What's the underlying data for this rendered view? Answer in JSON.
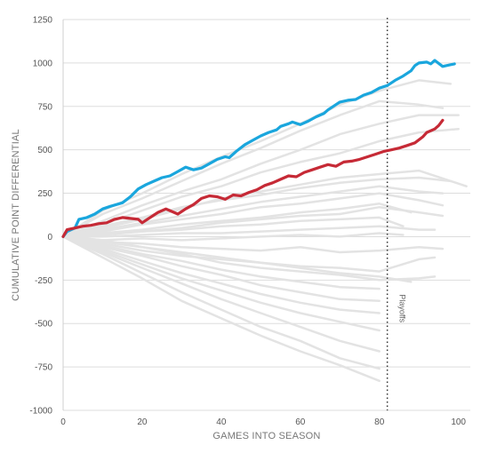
{
  "chart_data": {
    "type": "line",
    "xlabel": "GAMES INTO SEASON",
    "ylabel": "CUMULATIVE POINT DIFFERENTIAL",
    "xlim": [
      0,
      103
    ],
    "ylim": [
      -1000,
      1250
    ],
    "x_ticks": [
      0,
      20,
      40,
      60,
      80,
      100
    ],
    "y_ticks": [
      -1000,
      -750,
      -500,
      -250,
      0,
      250,
      500,
      750,
      1000,
      1250
    ],
    "grid": "horizontal",
    "annotations": [
      {
        "type": "vline",
        "x": 82,
        "label": "Playoffs"
      }
    ],
    "colors": {
      "blue": "#1aa6dd",
      "red": "#c62a36",
      "gray": "#e3e3e3",
      "grid": "#dddddd"
    },
    "series": [
      {
        "color": "blue",
        "games": 99,
        "final": 995,
        "points": [
          [
            0,
            0
          ],
          [
            1,
            30
          ],
          [
            3,
            50
          ],
          [
            4,
            100
          ],
          [
            6,
            110
          ],
          [
            8,
            130
          ],
          [
            10,
            160
          ],
          [
            12,
            175
          ],
          [
            15,
            195
          ],
          [
            17,
            230
          ],
          [
            19,
            275
          ],
          [
            21,
            300
          ],
          [
            23,
            320
          ],
          [
            25,
            340
          ],
          [
            27,
            350
          ],
          [
            29,
            375
          ],
          [
            31,
            400
          ],
          [
            33,
            385
          ],
          [
            35,
            395
          ],
          [
            37,
            420
          ],
          [
            39,
            445
          ],
          [
            41,
            460
          ],
          [
            42,
            455
          ],
          [
            44,
            495
          ],
          [
            46,
            530
          ],
          [
            48,
            555
          ],
          [
            50,
            580
          ],
          [
            52,
            600
          ],
          [
            54,
            615
          ],
          [
            55,
            635
          ],
          [
            57,
            650
          ],
          [
            58,
            660
          ],
          [
            60,
            645
          ],
          [
            62,
            665
          ],
          [
            64,
            690
          ],
          [
            66,
            710
          ],
          [
            67,
            730
          ],
          [
            69,
            760
          ],
          [
            70,
            775
          ],
          [
            72,
            785
          ],
          [
            74,
            790
          ],
          [
            76,
            815
          ],
          [
            78,
            830
          ],
          [
            80,
            855
          ],
          [
            82,
            870
          ],
          [
            84,
            900
          ],
          [
            86,
            925
          ],
          [
            88,
            955
          ],
          [
            89,
            985
          ],
          [
            90,
            1000
          ],
          [
            92,
            1005
          ],
          [
            93,
            995
          ],
          [
            94,
            1015
          ],
          [
            96,
            980
          ],
          [
            97,
            985
          ],
          [
            99,
            995
          ]
        ]
      },
      {
        "color": "red",
        "games": 96,
        "final": 670,
        "points": [
          [
            0,
            0
          ],
          [
            1,
            40
          ],
          [
            3,
            50
          ],
          [
            5,
            60
          ],
          [
            7,
            65
          ],
          [
            9,
            75
          ],
          [
            11,
            80
          ],
          [
            13,
            100
          ],
          [
            15,
            110
          ],
          [
            17,
            105
          ],
          [
            19,
            100
          ],
          [
            20,
            80
          ],
          [
            22,
            110
          ],
          [
            24,
            140
          ],
          [
            26,
            160
          ],
          [
            27,
            150
          ],
          [
            29,
            130
          ],
          [
            31,
            160
          ],
          [
            33,
            185
          ],
          [
            35,
            220
          ],
          [
            37,
            235
          ],
          [
            39,
            230
          ],
          [
            41,
            215
          ],
          [
            43,
            240
          ],
          [
            45,
            235
          ],
          [
            47,
            255
          ],
          [
            49,
            270
          ],
          [
            51,
            295
          ],
          [
            53,
            310
          ],
          [
            55,
            330
          ],
          [
            57,
            350
          ],
          [
            59,
            345
          ],
          [
            61,
            370
          ],
          [
            63,
            385
          ],
          [
            65,
            400
          ],
          [
            67,
            415
          ],
          [
            69,
            405
          ],
          [
            71,
            430
          ],
          [
            73,
            435
          ],
          [
            75,
            445
          ],
          [
            77,
            460
          ],
          [
            79,
            475
          ],
          [
            81,
            490
          ],
          [
            83,
            500
          ],
          [
            85,
            510
          ],
          [
            87,
            525
          ],
          [
            89,
            540
          ],
          [
            91,
            575
          ],
          [
            92,
            600
          ],
          [
            94,
            620
          ],
          [
            95,
            640
          ],
          [
            96,
            670
          ]
        ]
      }
    ],
    "background_series": [
      [
        [
          0,
          0
        ],
        [
          10,
          150
        ],
        [
          20,
          250
        ],
        [
          30,
          360
        ],
        [
          40,
          460
        ],
        [
          50,
          550
        ],
        [
          60,
          650
        ],
        [
          70,
          760
        ],
        [
          80,
          840
        ],
        [
          90,
          900
        ],
        [
          98,
          880
        ]
      ],
      [
        [
          0,
          0
        ],
        [
          10,
          130
        ],
        [
          20,
          220
        ],
        [
          30,
          320
        ],
        [
          40,
          420
        ],
        [
          50,
          510
        ],
        [
          60,
          610
        ],
        [
          70,
          700
        ],
        [
          80,
          780
        ],
        [
          90,
          760
        ],
        [
          96,
          740
        ]
      ],
      [
        [
          0,
          0
        ],
        [
          10,
          90
        ],
        [
          20,
          180
        ],
        [
          30,
          260
        ],
        [
          40,
          330
        ],
        [
          50,
          420
        ],
        [
          60,
          500
        ],
        [
          70,
          590
        ],
        [
          80,
          650
        ],
        [
          90,
          700
        ],
        [
          100,
          700
        ]
      ],
      [
        [
          0,
          0
        ],
        [
          10,
          70
        ],
        [
          20,
          150
        ],
        [
          30,
          230
        ],
        [
          40,
          290
        ],
        [
          50,
          370
        ],
        [
          60,
          430
        ],
        [
          70,
          480
        ],
        [
          80,
          550
        ],
        [
          90,
          600
        ],
        [
          100,
          620
        ]
      ],
      [
        [
          0,
          0
        ],
        [
          10,
          50
        ],
        [
          20,
          100
        ],
        [
          30,
          160
        ],
        [
          40,
          220
        ],
        [
          50,
          260
        ],
        [
          60,
          300
        ],
        [
          70,
          340
        ],
        [
          80,
          360
        ],
        [
          90,
          380
        ],
        [
          102,
          290
        ]
      ],
      [
        [
          0,
          0
        ],
        [
          10,
          60
        ],
        [
          20,
          110
        ],
        [
          30,
          170
        ],
        [
          40,
          210
        ],
        [
          50,
          240
        ],
        [
          60,
          280
        ],
        [
          70,
          310
        ],
        [
          80,
          330
        ],
        [
          90,
          340
        ],
        [
          98,
          320
        ]
      ],
      [
        [
          0,
          0
        ],
        [
          10,
          40
        ],
        [
          20,
          80
        ],
        [
          30,
          120
        ],
        [
          40,
          160
        ],
        [
          50,
          200
        ],
        [
          60,
          230
        ],
        [
          70,
          260
        ],
        [
          80,
          290
        ],
        [
          90,
          260
        ],
        [
          96,
          250
        ]
      ],
      [
        [
          0,
          0
        ],
        [
          10,
          30
        ],
        [
          20,
          70
        ],
        [
          30,
          100
        ],
        [
          40,
          130
        ],
        [
          50,
          170
        ],
        [
          60,
          190
        ],
        [
          70,
          220
        ],
        [
          80,
          250
        ],
        [
          90,
          210
        ],
        [
          96,
          180
        ]
      ],
      [
        [
          0,
          0
        ],
        [
          10,
          20
        ],
        [
          20,
          40
        ],
        [
          30,
          70
        ],
        [
          40,
          90
        ],
        [
          50,
          110
        ],
        [
          60,
          140
        ],
        [
          70,
          160
        ],
        [
          80,
          190
        ],
        [
          88,
          140
        ]
      ],
      [
        [
          0,
          0
        ],
        [
          10,
          10
        ],
        [
          20,
          30
        ],
        [
          30,
          40
        ],
        [
          40,
          60
        ],
        [
          50,
          70
        ],
        [
          60,
          90
        ],
        [
          70,
          100
        ],
        [
          80,
          110
        ],
        [
          86,
          60
        ]
      ],
      [
        [
          0,
          0
        ],
        [
          10,
          0
        ],
        [
          20,
          10
        ],
        [
          30,
          20
        ],
        [
          40,
          20
        ],
        [
          50,
          30
        ],
        [
          60,
          40
        ],
        [
          70,
          50
        ],
        [
          80,
          60
        ],
        [
          90,
          40
        ],
        [
          94,
          40
        ]
      ],
      [
        [
          0,
          0
        ],
        [
          10,
          -20
        ],
        [
          20,
          -10
        ],
        [
          30,
          -20
        ],
        [
          40,
          -10
        ],
        [
          50,
          0
        ],
        [
          60,
          10
        ],
        [
          70,
          0
        ],
        [
          80,
          20
        ],
        [
          86,
          10
        ]
      ],
      [
        [
          0,
          0
        ],
        [
          10,
          -30
        ],
        [
          20,
          -40
        ],
        [
          30,
          -60
        ],
        [
          40,
          -70
        ],
        [
          50,
          -80
        ],
        [
          60,
          -60
        ],
        [
          70,
          -90
        ],
        [
          80,
          -80
        ],
        [
          90,
          -60
        ],
        [
          96,
          -70
        ]
      ],
      [
        [
          0,
          0
        ],
        [
          10,
          -40
        ],
        [
          20,
          -80
        ],
        [
          30,
          -110
        ],
        [
          40,
          -130
        ],
        [
          50,
          -150
        ],
        [
          60,
          -170
        ],
        [
          70,
          -180
        ],
        [
          80,
          -200
        ],
        [
          90,
          -130
        ],
        [
          94,
          -120
        ]
      ],
      [
        [
          0,
          0
        ],
        [
          10,
          -30
        ],
        [
          20,
          -60
        ],
        [
          30,
          -90
        ],
        [
          40,
          -120
        ],
        [
          50,
          -150
        ],
        [
          60,
          -180
        ],
        [
          70,
          -210
        ],
        [
          80,
          -230
        ],
        [
          88,
          -260
        ]
      ],
      [
        [
          0,
          0
        ],
        [
          10,
          -50
        ],
        [
          20,
          -100
        ],
        [
          30,
          -140
        ],
        [
          40,
          -190
        ],
        [
          50,
          -230
        ],
        [
          60,
          -260
        ],
        [
          70,
          -290
        ],
        [
          80,
          -300
        ]
      ],
      [
        [
          0,
          0
        ],
        [
          10,
          -60
        ],
        [
          20,
          -110
        ],
        [
          30,
          -170
        ],
        [
          40,
          -220
        ],
        [
          50,
          -280
        ],
        [
          60,
          -320
        ],
        [
          70,
          -360
        ],
        [
          80,
          -370
        ]
      ],
      [
        [
          0,
          0
        ],
        [
          10,
          -70
        ],
        [
          20,
          -140
        ],
        [
          30,
          -210
        ],
        [
          40,
          -270
        ],
        [
          50,
          -330
        ],
        [
          60,
          -380
        ],
        [
          70,
          -420
        ],
        [
          80,
          -440
        ]
      ],
      [
        [
          0,
          0
        ],
        [
          10,
          -80
        ],
        [
          20,
          -160
        ],
        [
          30,
          -240
        ],
        [
          40,
          -310
        ],
        [
          50,
          -380
        ],
        [
          60,
          -440
        ],
        [
          70,
          -490
        ],
        [
          80,
          -540
        ]
      ],
      [
        [
          0,
          0
        ],
        [
          10,
          -90
        ],
        [
          20,
          -180
        ],
        [
          30,
          -270
        ],
        [
          40,
          -360
        ],
        [
          50,
          -440
        ],
        [
          60,
          -520
        ],
        [
          70,
          -600
        ],
        [
          80,
          -660
        ]
      ],
      [
        [
          0,
          0
        ],
        [
          10,
          -100
        ],
        [
          20,
          -210
        ],
        [
          30,
          -320
        ],
        [
          40,
          -420
        ],
        [
          50,
          -520
        ],
        [
          60,
          -600
        ],
        [
          70,
          -700
        ],
        [
          80,
          -760
        ]
      ],
      [
        [
          0,
          0
        ],
        [
          10,
          -120
        ],
        [
          20,
          -240
        ],
        [
          30,
          -370
        ],
        [
          40,
          -470
        ],
        [
          50,
          -570
        ],
        [
          60,
          -660
        ],
        [
          70,
          -740
        ],
        [
          80,
          -830
        ]
      ],
      [
        [
          0,
          0
        ],
        [
          10,
          -20
        ],
        [
          20,
          -60
        ],
        [
          30,
          -100
        ],
        [
          40,
          -150
        ],
        [
          50,
          -180
        ],
        [
          60,
          -200
        ],
        [
          70,
          -220
        ],
        [
          80,
          -250
        ],
        [
          90,
          -240
        ],
        [
          94,
          -230
        ]
      ],
      [
        [
          0,
          0
        ],
        [
          10,
          20
        ],
        [
          20,
          30
        ],
        [
          30,
          50
        ],
        [
          40,
          80
        ],
        [
          50,
          100
        ],
        [
          60,
          120
        ],
        [
          70,
          130
        ],
        [
          80,
          170
        ],
        [
          90,
          140
        ],
        [
          96,
          120
        ]
      ]
    ]
  }
}
